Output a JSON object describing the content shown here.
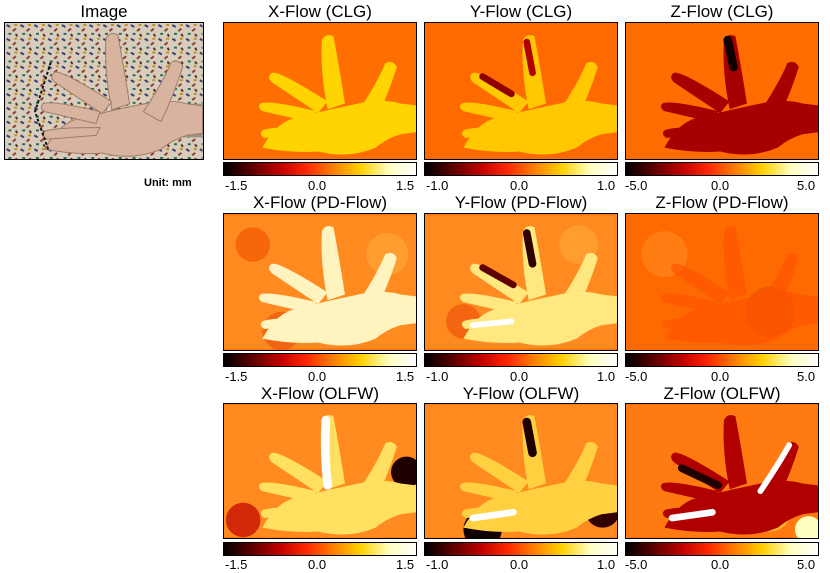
{
  "image_panel": {
    "title": "Image",
    "unit_label": "Unit: mm"
  },
  "rows": [
    {
      "method": "CLG",
      "panels": [
        {
          "title": "X-Flow (CLG)",
          "ticks": [
            "-1.5",
            "0.0",
            "1.5"
          ]
        },
        {
          "title": "Y-Flow (CLG)",
          "ticks": [
            "-1.0",
            "0.0",
            "1.0"
          ]
        },
        {
          "title": "Z-Flow (CLG)",
          "ticks": [
            "-5.0",
            "0.0",
            "5.0"
          ]
        }
      ]
    },
    {
      "method": "PD-Flow",
      "panels": [
        {
          "title": "X-Flow (PD-Flow)",
          "ticks": [
            "-1.5",
            "0.0",
            "1.5"
          ]
        },
        {
          "title": "Y-Flow (PD-Flow)",
          "ticks": [
            "-1.0",
            "0.0",
            "1.0"
          ]
        },
        {
          "title": "Z-Flow (PD-Flow)",
          "ticks": [
            "-5.0",
            "0.0",
            "5.0"
          ]
        }
      ]
    },
    {
      "method": "OLFW",
      "panels": [
        {
          "title": "X-Flow (OLFW)",
          "ticks": [
            "-1.5",
            "0.0",
            "1.5"
          ]
        },
        {
          "title": "Y-Flow (OLFW)",
          "ticks": [
            "-1.0",
            "0.0",
            "1.0"
          ]
        },
        {
          "title": "Z-Flow (OLFW)",
          "ticks": [
            "-5.0",
            "0.0",
            "5.0"
          ]
        }
      ]
    }
  ],
  "colormap": [
    "#000000",
    "#5a0000",
    "#c00000",
    "#ff2800",
    "#ff8000",
    "#ffd000",
    "#ffffc0",
    "#ffffff"
  ]
}
